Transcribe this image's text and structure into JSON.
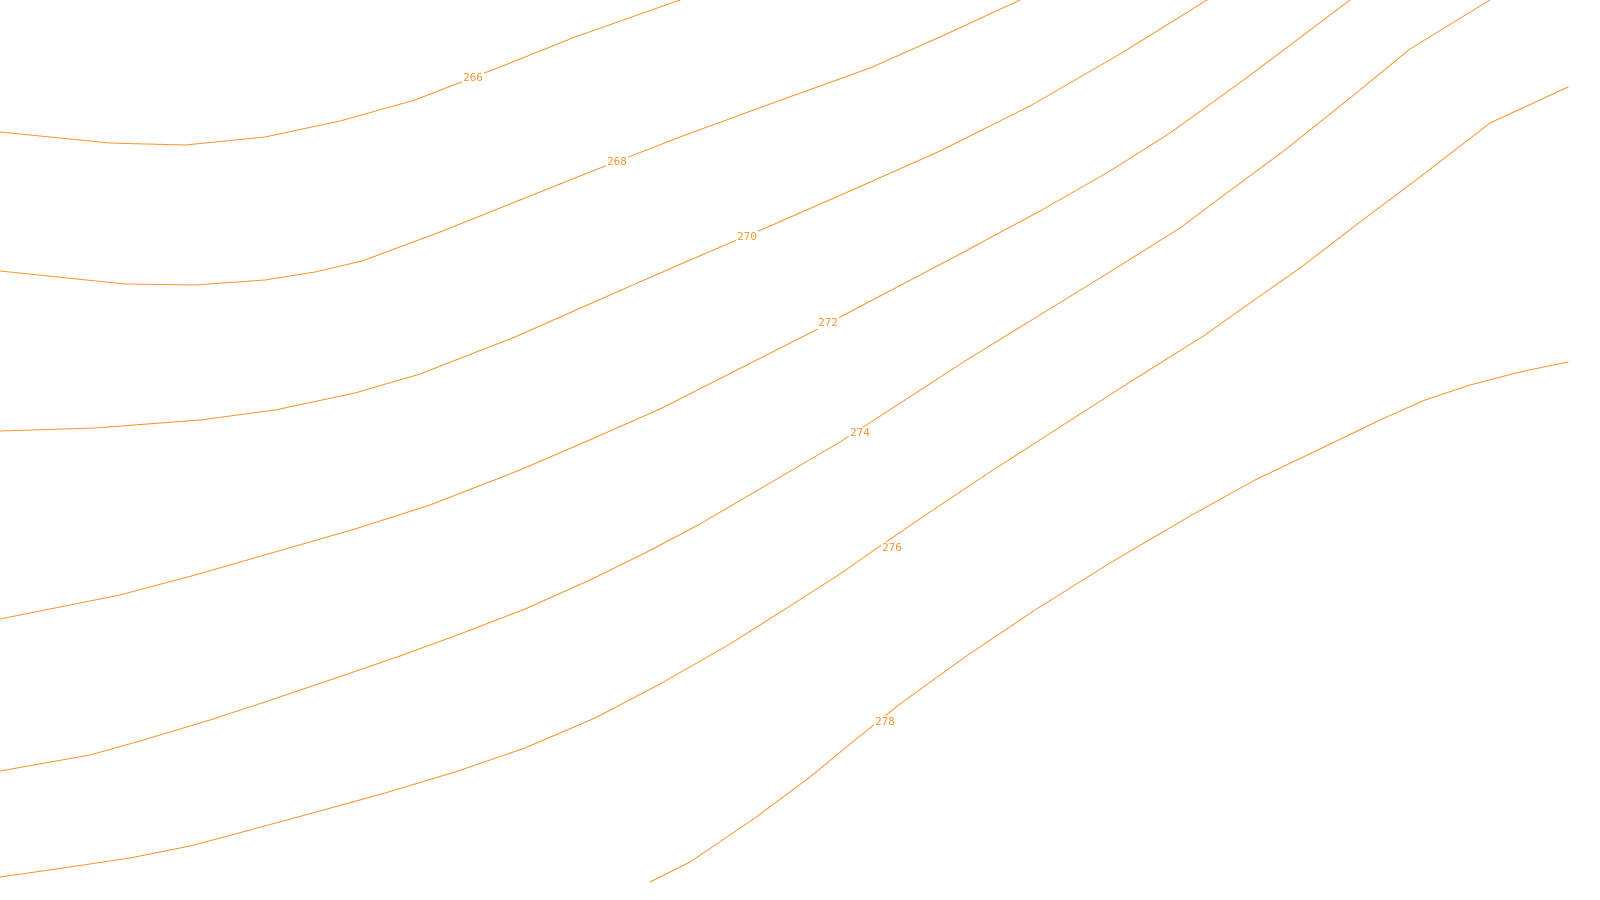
{
  "map": {
    "contour_color": "#f5962e",
    "background_color": "#ffffff",
    "contours": [
      {
        "elevation_label": "266"
      },
      {
        "elevation_label": "268"
      },
      {
        "elevation_label": "270"
      },
      {
        "elevation_label": "272"
      },
      {
        "elevation_label": "274"
      },
      {
        "elevation_label": "276"
      },
      {
        "elevation_label": "278"
      }
    ]
  }
}
